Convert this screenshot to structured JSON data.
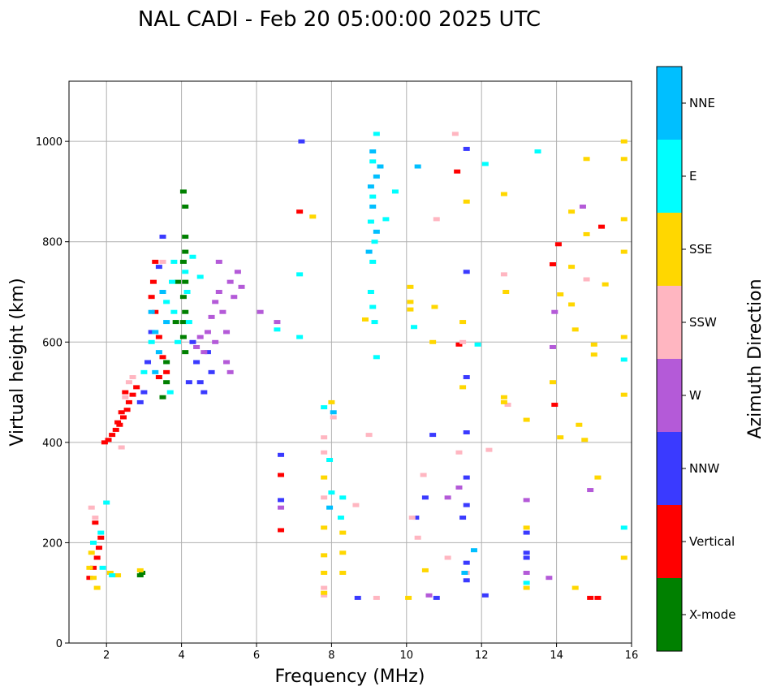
{
  "chart_data": {
    "type": "scatter",
    "title": "NAL CADI - Feb 20 05:00:00 2025 UTC",
    "xlabel": "Frequency (MHz)",
    "ylabel": "Virtual height (km)",
    "xlim": [
      1,
      16
    ],
    "ylim": [
      0,
      1120
    ],
    "xticks": [
      2,
      4,
      6,
      8,
      10,
      12,
      14,
      16
    ],
    "yticks": [
      0,
      200,
      400,
      600,
      800,
      1000
    ],
    "grid": true,
    "colorbar": {
      "label": "Azimuth Direction",
      "categories": [
        {
          "name": "X-mode",
          "color": "#008000"
        },
        {
          "name": "Vertical",
          "color": "#ff0000"
        },
        {
          "name": "NNW",
          "color": "#3a3aff"
        },
        {
          "name": "W",
          "color": "#b45ad8"
        },
        {
          "name": "SSW",
          "color": "#ffb6c1"
        },
        {
          "name": "SSE",
          "color": "#ffd700"
        },
        {
          "name": "E",
          "color": "#00ffff"
        },
        {
          "name": "NNE",
          "color": "#00bfff"
        }
      ]
    },
    "series": [
      {
        "name": "X-mode",
        "points": [
          [
            4.05,
            900
          ],
          [
            4.1,
            870
          ],
          [
            4.1,
            810
          ],
          [
            4.1,
            780
          ],
          [
            4.05,
            760
          ],
          [
            4.1,
            720
          ],
          [
            4.05,
            690
          ],
          [
            4.1,
            660
          ],
          [
            4.05,
            640
          ],
          [
            4.05,
            610
          ],
          [
            4.1,
            580
          ],
          [
            3.9,
            720
          ],
          [
            3.6,
            560
          ],
          [
            3.6,
            520
          ],
          [
            3.5,
            490
          ],
          [
            2.95,
            140
          ],
          [
            2.9,
            135
          ],
          [
            3.85,
            640
          ]
        ]
      },
      {
        "name": "Vertical",
        "points": [
          [
            1.95,
            400
          ],
          [
            2.05,
            405
          ],
          [
            2.15,
            415
          ],
          [
            2.25,
            425
          ],
          [
            2.35,
            435
          ],
          [
            2.45,
            450
          ],
          [
            2.55,
            465
          ],
          [
            2.6,
            480
          ],
          [
            2.7,
            495
          ],
          [
            2.5,
            500
          ],
          [
            2.8,
            510
          ],
          [
            2.3,
            440
          ],
          [
            2.4,
            460
          ],
          [
            3.3,
            760
          ],
          [
            3.25,
            720
          ],
          [
            3.2,
            690
          ],
          [
            3.3,
            660
          ],
          [
            3.4,
            610
          ],
          [
            3.5,
            570
          ],
          [
            3.6,
            540
          ],
          [
            3.4,
            530
          ],
          [
            1.55,
            130
          ],
          [
            1.65,
            150
          ],
          [
            1.75,
            170
          ],
          [
            1.8,
            190
          ],
          [
            1.85,
            210
          ],
          [
            1.7,
            240
          ],
          [
            6.65,
            335
          ],
          [
            6.65,
            225
          ],
          [
            7.15,
            860
          ],
          [
            11.35,
            940
          ],
          [
            11.4,
            595
          ],
          [
            13.95,
            475
          ],
          [
            14.05,
            795
          ],
          [
            13.9,
            755
          ],
          [
            15.2,
            830
          ],
          [
            14.9,
            90
          ],
          [
            15.1,
            90
          ]
        ]
      },
      {
        "name": "NNW",
        "points": [
          [
            3.5,
            810
          ],
          [
            3.4,
            750
          ],
          [
            3.2,
            620
          ],
          [
            3.1,
            560
          ],
          [
            3.0,
            500
          ],
          [
            2.9,
            480
          ],
          [
            4.4,
            560
          ],
          [
            4.5,
            520
          ],
          [
            4.2,
            520
          ],
          [
            4.3,
            600
          ],
          [
            4.7,
            580
          ],
          [
            4.8,
            540
          ],
          [
            4.6,
            500
          ],
          [
            6.65,
            375
          ],
          [
            6.65,
            285
          ],
          [
            7.2,
            1000
          ],
          [
            10.5,
            290
          ],
          [
            10.25,
            250
          ],
          [
            10.7,
            415
          ],
          [
            11.6,
            985
          ],
          [
            11.6,
            740
          ],
          [
            11.6,
            530
          ],
          [
            11.6,
            420
          ],
          [
            11.6,
            330
          ],
          [
            11.6,
            275
          ],
          [
            11.5,
            250
          ],
          [
            11.6,
            160
          ],
          [
            11.6,
            125
          ],
          [
            12.1,
            95
          ],
          [
            13.2,
            180
          ],
          [
            13.2,
            220
          ],
          [
            13.2,
            170
          ],
          [
            8.7,
            90
          ],
          [
            10.8,
            90
          ]
        ]
      },
      {
        "name": "W",
        "points": [
          [
            4.6,
            580
          ],
          [
            4.7,
            620
          ],
          [
            4.8,
            650
          ],
          [
            4.9,
            680
          ],
          [
            5.0,
            700
          ],
          [
            5.1,
            660
          ],
          [
            5.2,
            620
          ],
          [
            5.3,
            720
          ],
          [
            5.4,
            690
          ],
          [
            5.5,
            740
          ],
          [
            5.6,
            710
          ],
          [
            4.5,
            610
          ],
          [
            4.4,
            590
          ],
          [
            5.0,
            760
          ],
          [
            5.2,
            560
          ],
          [
            5.3,
            540
          ],
          [
            4.9,
            600
          ],
          [
            6.1,
            660
          ],
          [
            6.55,
            640
          ],
          [
            6.65,
            270
          ],
          [
            11.1,
            290
          ],
          [
            11.4,
            310
          ],
          [
            13.2,
            285
          ],
          [
            13.2,
            140
          ],
          [
            13.9,
            590
          ],
          [
            13.95,
            660
          ],
          [
            14.7,
            870
          ],
          [
            14.9,
            305
          ],
          [
            13.8,
            130
          ],
          [
            10.6,
            95
          ]
        ]
      },
      {
        "name": "SSW",
        "points": [
          [
            2.6,
            520
          ],
          [
            2.7,
            530
          ],
          [
            2.5,
            490
          ],
          [
            3.5,
            760
          ],
          [
            1.6,
            270
          ],
          [
            1.7,
            250
          ],
          [
            2.4,
            390
          ],
          [
            7.8,
            410
          ],
          [
            7.8,
            380
          ],
          [
            7.8,
            290
          ],
          [
            7.8,
            110
          ],
          [
            7.8,
            95
          ],
          [
            8.05,
            450
          ],
          [
            8.65,
            275
          ],
          [
            9.0,
            415
          ],
          [
            10.15,
            250
          ],
          [
            10.45,
            335
          ],
          [
            10.3,
            210
          ],
          [
            10.8,
            845
          ],
          [
            11.3,
            1015
          ],
          [
            11.5,
            600
          ],
          [
            11.4,
            380
          ],
          [
            11.6,
            140
          ],
          [
            11.1,
            170
          ],
          [
            12.2,
            385
          ],
          [
            12.6,
            735
          ],
          [
            12.7,
            475
          ],
          [
            14.8,
            725
          ],
          [
            9.2,
            90
          ]
        ]
      },
      {
        "name": "SSE",
        "points": [
          [
            1.55,
            150
          ],
          [
            1.65,
            130
          ],
          [
            1.75,
            110
          ],
          [
            2.1,
            140
          ],
          [
            2.3,
            135
          ],
          [
            2.9,
            145
          ],
          [
            1.6,
            180
          ],
          [
            7.5,
            850
          ],
          [
            7.8,
            330
          ],
          [
            7.8,
            230
          ],
          [
            7.8,
            175
          ],
          [
            7.8,
            140
          ],
          [
            7.8,
            100
          ],
          [
            8.0,
            480
          ],
          [
            8.3,
            180
          ],
          [
            8.3,
            220
          ],
          [
            8.3,
            140
          ],
          [
            8.9,
            645
          ],
          [
            10.1,
            710
          ],
          [
            10.1,
            680
          ],
          [
            10.1,
            665
          ],
          [
            10.7,
            600
          ],
          [
            10.75,
            670
          ],
          [
            11.5,
            510
          ],
          [
            11.5,
            640
          ],
          [
            11.6,
            880
          ],
          [
            12.6,
            895
          ],
          [
            12.65,
            700
          ],
          [
            12.6,
            490
          ],
          [
            12.6,
            480
          ],
          [
            13.2,
            445
          ],
          [
            13.2,
            230
          ],
          [
            13.2,
            110
          ],
          [
            13.9,
            520
          ],
          [
            14.1,
            695
          ],
          [
            14.1,
            410
          ],
          [
            14.4,
            860
          ],
          [
            14.4,
            750
          ],
          [
            14.4,
            675
          ],
          [
            14.5,
            625
          ],
          [
            14.6,
            435
          ],
          [
            14.75,
            405
          ],
          [
            14.8,
            965
          ],
          [
            14.8,
            815
          ],
          [
            15.0,
            595
          ],
          [
            15.0,
            575
          ],
          [
            15.1,
            330
          ],
          [
            15.3,
            715
          ],
          [
            15.8,
            1000
          ],
          [
            15.8,
            965
          ],
          [
            15.8,
            845
          ],
          [
            15.8,
            780
          ],
          [
            15.8,
            610
          ],
          [
            15.8,
            495
          ],
          [
            15.8,
            170
          ],
          [
            14.5,
            110
          ],
          [
            10.5,
            145
          ],
          [
            10.05,
            90
          ]
        ]
      },
      {
        "name": "E",
        "points": [
          [
            2.0,
            280
          ],
          [
            1.85,
            220
          ],
          [
            1.65,
            200
          ],
          [
            1.9,
            150
          ],
          [
            2.15,
            135
          ],
          [
            3.0,
            540
          ],
          [
            3.2,
            600
          ],
          [
            3.6,
            680
          ],
          [
            3.75,
            720
          ],
          [
            3.8,
            760
          ],
          [
            4.1,
            740
          ],
          [
            4.3,
            770
          ],
          [
            4.15,
            700
          ],
          [
            4.2,
            640
          ],
          [
            3.9,
            600
          ],
          [
            3.8,
            660
          ],
          [
            4.5,
            730
          ],
          [
            3.7,
            500
          ],
          [
            6.55,
            625
          ],
          [
            7.15,
            735
          ],
          [
            7.15,
            610
          ],
          [
            7.8,
            470
          ],
          [
            7.95,
            365
          ],
          [
            8.0,
            300
          ],
          [
            8.25,
            250
          ],
          [
            8.3,
            290
          ],
          [
            9.1,
            960
          ],
          [
            9.1,
            890
          ],
          [
            9.05,
            840
          ],
          [
            9.15,
            800
          ],
          [
            9.1,
            760
          ],
          [
            9.05,
            700
          ],
          [
            9.1,
            670
          ],
          [
            9.15,
            640
          ],
          [
            9.2,
            570
          ],
          [
            9.45,
            845
          ],
          [
            9.7,
            900
          ],
          [
            10.2,
            630
          ],
          [
            11.9,
            595
          ],
          [
            12.1,
            955
          ],
          [
            13.5,
            980
          ],
          [
            13.2,
            120
          ],
          [
            15.8,
            565
          ],
          [
            15.8,
            230
          ],
          [
            9.2,
            1015
          ]
        ]
      },
      {
        "name": "NNE",
        "points": [
          [
            3.2,
            660
          ],
          [
            3.3,
            620
          ],
          [
            3.4,
            580
          ],
          [
            3.3,
            540
          ],
          [
            3.5,
            700
          ],
          [
            3.6,
            640
          ],
          [
            9.1,
            980
          ],
          [
            9.2,
            930
          ],
          [
            9.05,
            910
          ],
          [
            9.1,
            870
          ],
          [
            9.2,
            820
          ],
          [
            9.0,
            780
          ],
          [
            9.3,
            950
          ],
          [
            8.05,
            460
          ],
          [
            7.95,
            270
          ],
          [
            10.3,
            950
          ],
          [
            11.55,
            140
          ],
          [
            11.8,
            185
          ]
        ]
      }
    ]
  }
}
